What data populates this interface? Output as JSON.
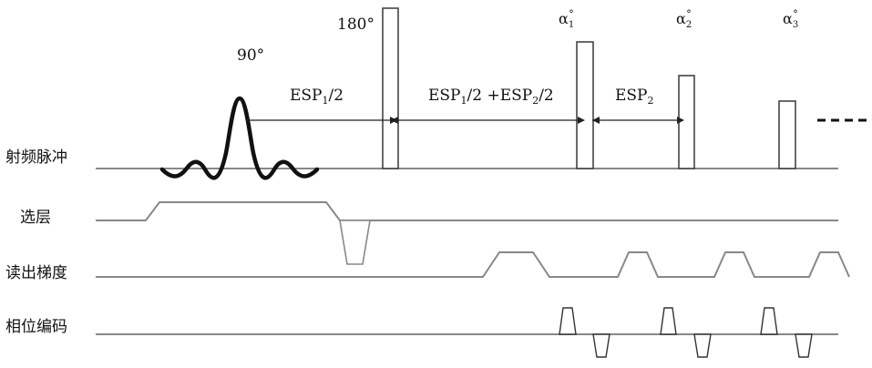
{
  "rows": {
    "rf": "射频脉冲",
    "slice": "选层",
    "readout": "读出梯度",
    "phase": "相位编码"
  },
  "pulses": {
    "excitation": "90°",
    "refocus": "180°",
    "alpha_symbol": "α",
    "alpha_1_sub": "1",
    "alpha_2_sub": "2",
    "alpha_3_sub": "3",
    "alpha_sup": "°"
  },
  "intervals": {
    "esp": "ESP",
    "sub_1": "1",
    "sub_2": "2",
    "half": "/2",
    "plus": " +",
    "space": " "
  }
}
